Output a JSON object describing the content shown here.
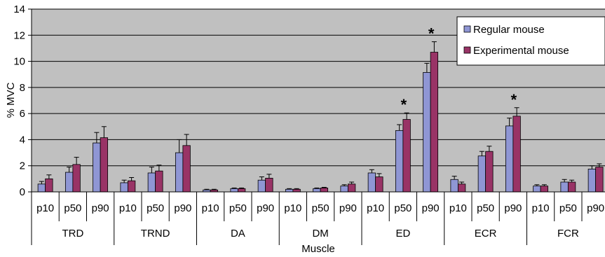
{
  "chart_data": {
    "type": "bar",
    "xlabel": "Muscle",
    "ylabel": "% MVC",
    "ylim": [
      0,
      14
    ],
    "yticks": [
      "0",
      "2",
      "4",
      "6",
      "8",
      "10",
      "12",
      "14"
    ],
    "grid": true,
    "legend_position": "top-right",
    "groups": [
      "TRD",
      "TRND",
      "DA",
      "DM",
      "ED",
      "ECR",
      "FCR"
    ],
    "subcategories": [
      "p10",
      "p50",
      "p90"
    ],
    "series": [
      {
        "name": "Regular mouse",
        "color": "#8f96d4",
        "values": [
          0.6,
          1.5,
          3.75,
          0.7,
          1.45,
          3.0,
          0.15,
          0.25,
          0.9,
          0.2,
          0.25,
          0.45,
          1.45,
          4.7,
          9.15,
          0.95,
          2.75,
          5.05,
          0.45,
          0.75,
          1.75
        ],
        "errors": [
          0.2,
          0.4,
          0.8,
          0.2,
          0.45,
          1.0,
          0.05,
          0.05,
          0.25,
          0.05,
          0.05,
          0.1,
          0.25,
          0.45,
          0.7,
          0.25,
          0.35,
          0.6,
          0.1,
          0.2,
          0.25
        ]
      },
      {
        "name": "Experimental mouse",
        "color": "#993366",
        "values": [
          1.0,
          2.1,
          4.15,
          0.85,
          1.6,
          3.55,
          0.15,
          0.25,
          1.05,
          0.2,
          0.3,
          0.6,
          1.15,
          5.55,
          10.7,
          0.6,
          3.1,
          5.8,
          0.45,
          0.75,
          1.9
        ],
        "errors": [
          0.3,
          0.55,
          0.85,
          0.25,
          0.45,
          0.85,
          0.05,
          0.05,
          0.3,
          0.05,
          0.05,
          0.15,
          0.25,
          0.5,
          0.8,
          0.15,
          0.4,
          0.65,
          0.1,
          0.15,
          0.25
        ]
      }
    ],
    "annotations": [
      {
        "text": "*",
        "group": "ED",
        "sub": "p50"
      },
      {
        "text": "*",
        "group": "ED",
        "sub": "p90"
      },
      {
        "text": "*",
        "group": "ECR",
        "sub": "p90"
      }
    ]
  }
}
